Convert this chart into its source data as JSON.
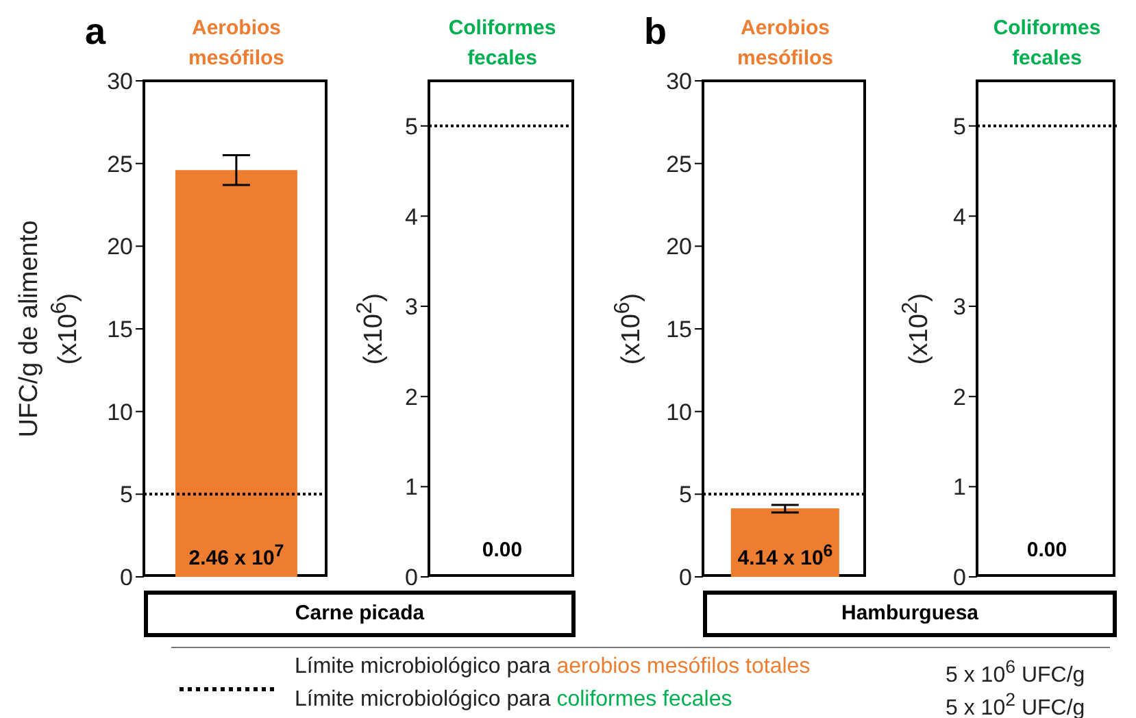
{
  "chart_data": [
    {
      "type": "bar",
      "title": "Aerobios mesófilos",
      "ylabel": "UFC/g de alimento (x10$^{6}$)",
      "xlabel": "Carne picada",
      "categories": [
        null
      ],
      "series": [
        {
          "color": "#ed7d31",
          "values": [
            24.6
          ],
          "errors": [
            [
              23.7,
              25.5
            ]
          ]
        }
      ],
      "ylim": [
        0,
        30
      ],
      "yticks": [
        0,
        5,
        10,
        15,
        20,
        25,
        30
      ],
      "ref_lines": [
        {
          "axis": "y",
          "value": 5,
          "line_style": "dotted",
          "color": "#000000"
        }
      ],
      "annotations": [
        "a",
        "2.46 x 10$^{7}$",
        "Límite microbiológico para",
        "aerobios mesófilos totales",
        "5 x 10$^{6}$ UFC/g"
      ]
    },
    {
      "type": "bar",
      "title": "Coliformes fecales",
      "ylabel": "(x10$^{2}$)",
      "categories": [
        null
      ],
      "series": [
        {
          "color": "#00b050",
          "values": [
            0
          ],
          "value_labels": [
            "0.00"
          ]
        }
      ],
      "ylim": [
        0,
        5.5
      ],
      "yticks": [
        0,
        1,
        2,
        3,
        4,
        5
      ],
      "ref_lines": [
        {
          "axis": "y",
          "value": 5,
          "line_style": "dotted",
          "color": "#000000"
        }
      ],
      "annotations": [
        "Límite microbiológico para",
        "coliformes fecales",
        "5 x 10$^{2}$ UFC/g"
      ]
    },
    {
      "type": "bar",
      "title": "Aerobios mesófilos",
      "ylabel": "(x10$^{6}$)",
      "xlabel": "Hamburguesa",
      "categories": [
        null
      ],
      "series": [
        {
          "color": "#ed7d31",
          "values": [
            4.14
          ],
          "errors": [
            [
              3.9,
              4.35
            ]
          ]
        }
      ],
      "ylim": [
        0,
        30
      ],
      "yticks": [
        0,
        5,
        10,
        15,
        20,
        25,
        30
      ],
      "ref_lines": [
        {
          "axis": "y",
          "value": 5,
          "line_style": "dotted",
          "color": "#000000"
        }
      ],
      "annotations": [
        "b",
        "4.14 x 10$^{6}$"
      ]
    },
    {
      "type": "bar",
      "title": "Coliformes fecales",
      "ylabel": "(x10$^{2}$)",
      "categories": [
        null
      ],
      "series": [
        {
          "color": "#00b050",
          "values": [
            0
          ],
          "value_labels": [
            "0.00"
          ]
        }
      ],
      "ylim": [
        0,
        5.5
      ],
      "yticks": [
        0,
        1,
        2,
        3,
        4,
        5
      ],
      "ref_lines": [
        {
          "axis": "y",
          "value": 5,
          "line_style": "dotted",
          "color": "#000000"
        }
      ]
    }
  ]
}
